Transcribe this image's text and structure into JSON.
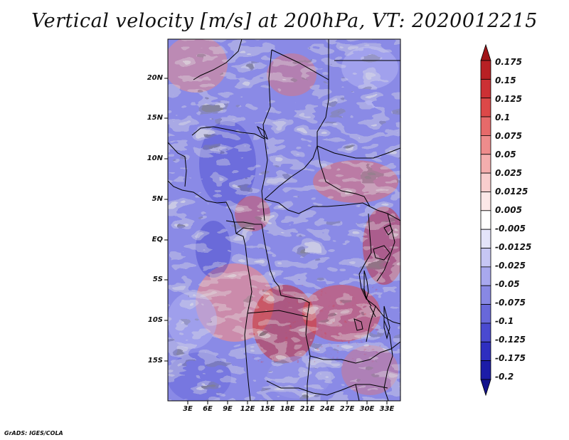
{
  "title": "Vertical velocity [m/s] at 200hPa, VT: 2020012215",
  "credit": "GrADS: IGES/COLA",
  "map": {
    "region": "Central Africa",
    "lat_range": [
      -20,
      25
    ],
    "lon_range": [
      0,
      35
    ],
    "lat_labels": [
      "20N",
      "15N",
      "10N",
      "5N",
      "EQ",
      "5S",
      "10S",
      "15S"
    ],
    "lon_labels": [
      "3E",
      "6E",
      "9E",
      "12E",
      "15E",
      "18E",
      "21E",
      "24E",
      "27E",
      "30E",
      "33E"
    ]
  },
  "colorbar": {
    "labels": [
      "0.175",
      "0.15",
      "0.125",
      "0.1",
      "0.075",
      "0.05",
      "0.025",
      "0.0125",
      "0.005",
      "-0.005",
      "-0.0125",
      "-0.025",
      "-0.05",
      "-0.075",
      "-0.1",
      "-0.125",
      "-0.175",
      "-0.2"
    ],
    "colors": [
      "#a01418",
      "#b82024",
      "#cc3034",
      "#dc4848",
      "#e66a6a",
      "#ee8c8c",
      "#f4aeae",
      "#f8cece",
      "#fce8e8",
      "#ffffff",
      "#e4e4fa",
      "#c6c6f4",
      "#a8a8ee",
      "#8888e4",
      "#6868da",
      "#4a4ad0",
      "#2e2ec0",
      "#1c1ca8",
      "#12128c"
    ]
  }
}
